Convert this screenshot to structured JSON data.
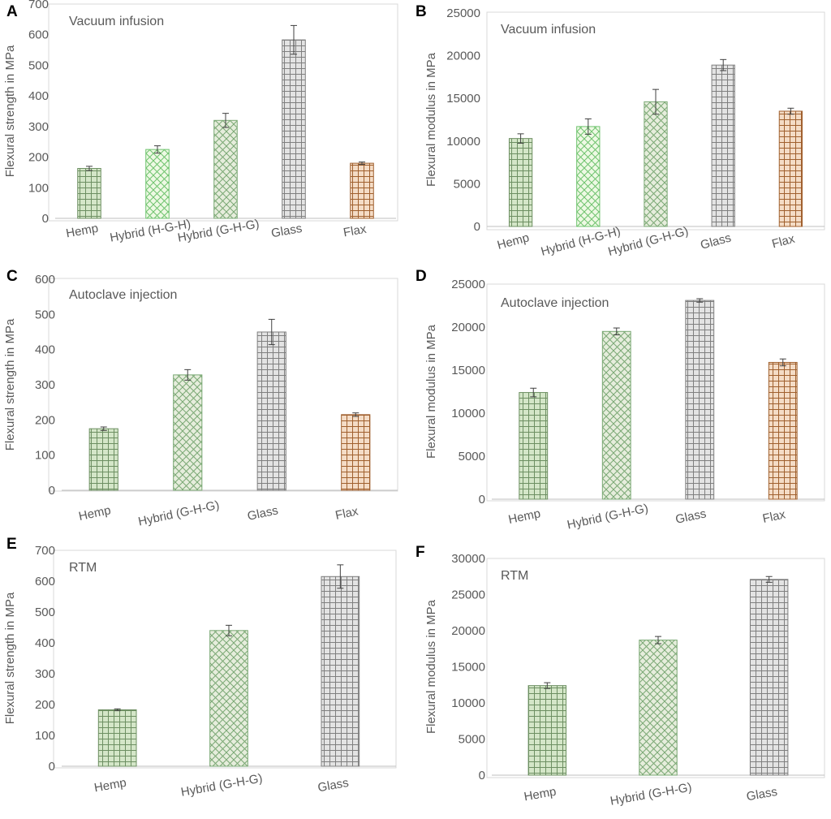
{
  "figure_colors": {
    "frame": "#d9d9d9",
    "axis": "#bfbfbf",
    "text": "#595959",
    "error_bar": "#404040",
    "materials": {
      "Hemp": {
        "pattern": "grid",
        "fill": "#d4e6c8",
        "line": "#6d8f62"
      },
      "Hybrid (H-G-H)": {
        "pattern": "lattice",
        "fill": "#eef9e4",
        "line": "#6ec36e"
      },
      "Hybrid (G-H-G)": {
        "pattern": "lattice",
        "fill": "#e6eddc",
        "line": "#7aa874"
      },
      "Glass": {
        "pattern": "grid",
        "fill": "#e3e3e3",
        "line": "#7f7f7f"
      },
      "Flax": {
        "pattern": "grid",
        "fill": "#f4dcc6",
        "line": "#a0602e"
      }
    }
  },
  "chart_data": [
    {
      "panel": "A",
      "type": "bar",
      "title": "Vacuum infusion",
      "ylabel": "Flexural strength in MPa",
      "xlabel": "",
      "ylim": [
        0,
        700
      ],
      "ytick_step": 100,
      "categories": [
        "Hemp",
        "Hybrid (H-G-H)",
        "Hybrid (G-H-G)",
        "Glass",
        "Flax"
      ],
      "values": [
        163,
        225,
        320,
        583,
        180
      ],
      "errors": [
        7,
        12,
        23,
        47,
        4
      ],
      "grid": false
    },
    {
      "panel": "B",
      "type": "bar",
      "title": "Vacuum infusion",
      "ylabel": "Flexural modulus in MPa",
      "xlabel": "",
      "ylim": [
        0,
        25000
      ],
      "ytick_step": 5000,
      "categories": [
        "Hemp",
        "Hybrid (H-G-H)",
        "Hybrid (G-H-G)",
        "Glass",
        "Flax"
      ],
      "values": [
        10300,
        11700,
        14600,
        18900,
        13500
      ],
      "errors": [
        550,
        900,
        1450,
        650,
        350
      ],
      "grid": false
    },
    {
      "panel": "C",
      "type": "bar",
      "title": "Autoclave injection",
      "ylabel": "Flexural strength in MPa",
      "xlabel": "",
      "ylim": [
        0,
        600
      ],
      "ytick_step": 100,
      "categories": [
        "Hemp",
        "Hybrid (G-H-G)",
        "Glass",
        "Flax"
      ],
      "values": [
        175,
        328,
        450,
        215
      ],
      "errors": [
        5,
        15,
        36,
        5
      ],
      "grid": false
    },
    {
      "panel": "D",
      "type": "bar",
      "title": "Autoclave injection",
      "ylabel": "Flexural modulus in MPa",
      "xlabel": "",
      "ylim": [
        0,
        25000
      ],
      "ytick_step": 5000,
      "categories": [
        "Hemp",
        "Hybrid (G-H-G)",
        "Glass",
        "Flax"
      ],
      "values": [
        12400,
        19500,
        23100,
        15900
      ],
      "errors": [
        500,
        400,
        200,
        400
      ],
      "grid": false
    },
    {
      "panel": "E",
      "type": "bar",
      "title": "RTM",
      "ylabel": "Flexural strength in MPa",
      "xlabel": "",
      "ylim": [
        0,
        700
      ],
      "ytick_step": 100,
      "categories": [
        "Hemp",
        "Hybrid (G-H-G)",
        "Glass"
      ],
      "values": [
        183,
        440,
        615
      ],
      "errors": [
        3,
        17,
        38
      ],
      "grid": false
    },
    {
      "panel": "F",
      "type": "bar",
      "title": "RTM",
      "ylabel": "Flexural modulus in MPa",
      "xlabel": "",
      "ylim": [
        0,
        30000
      ],
      "ytick_step": 5000,
      "categories": [
        "Hemp",
        "Hybrid (G-H-G)",
        "Glass"
      ],
      "values": [
        12400,
        18700,
        27100
      ],
      "errors": [
        400,
        500,
        400
      ],
      "grid": false
    }
  ]
}
